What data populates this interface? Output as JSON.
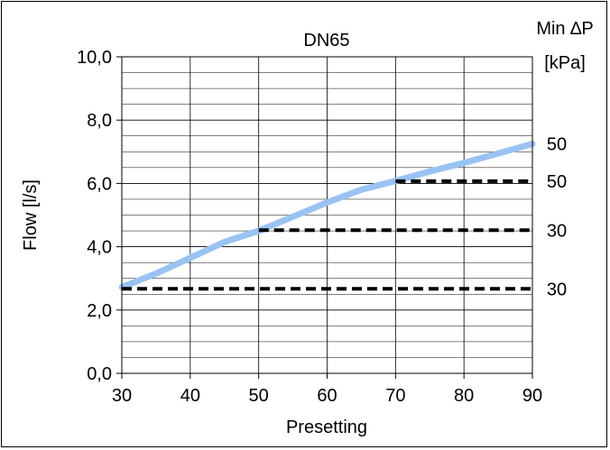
{
  "chart_data": {
    "type": "line",
    "title": "DN65",
    "xlabel": "Presetting",
    "ylabel": "Flow [l/s]",
    "xlim": [
      30,
      90
    ],
    "ylim": [
      0,
      10
    ],
    "x_ticks": [
      "30",
      "40",
      "50",
      "60",
      "70",
      "80",
      "90"
    ],
    "y_ticks": [
      "0,0",
      "2,0",
      "4,0",
      "6,0",
      "8,0",
      "10,0"
    ],
    "right_axis_title": [
      "Min ∆P",
      "[kPa]"
    ],
    "right_labels": [
      {
        "text": "50",
        "y": 7.25
      },
      {
        "text": "50",
        "y": 6.07
      },
      {
        "text": "30",
        "y": 4.52
      },
      {
        "text": "30",
        "y": 2.67
      }
    ],
    "grid": true,
    "series": [
      {
        "color": "#99c3f2",
        "style": "solid",
        "x": [
          30,
          35,
          40,
          45,
          50,
          55,
          60,
          65,
          70,
          75,
          80,
          85,
          90
        ],
        "y": [
          2.72,
          3.15,
          3.65,
          4.15,
          4.5,
          4.95,
          5.4,
          5.8,
          6.08,
          6.38,
          6.65,
          6.95,
          7.25
        ]
      },
      {
        "color": "#000000",
        "style": "dashed",
        "x": [
          30,
          90
        ],
        "y": [
          2.67,
          2.67
        ]
      },
      {
        "color": "#000000",
        "style": "dashed",
        "x": [
          50,
          90
        ],
        "y": [
          4.52,
          4.52
        ]
      },
      {
        "color": "#000000",
        "style": "dashed",
        "x": [
          70,
          90
        ],
        "y": [
          6.07,
          6.07
        ]
      }
    ]
  }
}
